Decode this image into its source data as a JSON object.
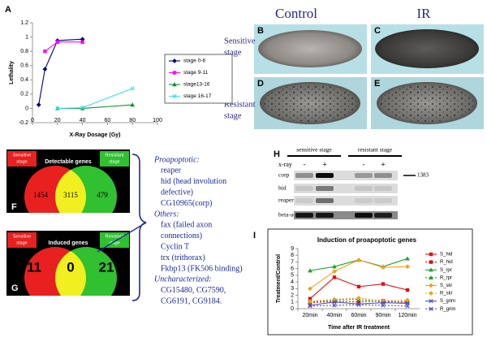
{
  "panel_labels": [
    "A",
    "B",
    "C",
    "D",
    "E",
    "F",
    "G",
    "H",
    "I"
  ],
  "chart_data": [
    {
      "type": "line",
      "x_label": "X-Ray Dosage (Gy)",
      "y_label": "Lethality",
      "xlim": [
        0,
        100
      ],
      "xticks": [
        0,
        20,
        40,
        60,
        80,
        100
      ],
      "ylim": [
        -0.2,
        1.2
      ],
      "yticks": [
        -0.2,
        0,
        0.2,
        0.4,
        0.6,
        0.8,
        1,
        1.2
      ],
      "grid": false,
      "legend": "right",
      "series": [
        {
          "name": "stage 0-6",
          "color": "#000080",
          "marker": "diamond",
          "x": [
            5,
            10,
            20,
            40
          ],
          "values": [
            0.05,
            0.55,
            0.95,
            0.97
          ]
        },
        {
          "name": "stage 9-11",
          "color": "#ff00ff",
          "marker": "square",
          "x": [
            10,
            20,
            40
          ],
          "values": [
            0.8,
            0.93,
            0.93
          ]
        },
        {
          "name": "stage13-16",
          "color": "#109030",
          "marker": "triangle",
          "x": [
            20,
            40,
            80
          ],
          "values": [
            0,
            0,
            0.05
          ]
        },
        {
          "name": "stage 16-17",
          "color": "#40e0f0",
          "marker": "x",
          "x": [
            20,
            40,
            80
          ],
          "values": [
            0,
            0.01,
            0.28
          ]
        }
      ]
    },
    {
      "type": "line",
      "title": "Induction of proapoptotic genes",
      "x_label": "Time after IR treatment",
      "y_label": "Treatment/Control",
      "categories": [
        "20min",
        "40min",
        "60min",
        "90min",
        "120min"
      ],
      "ylim": [
        0,
        9
      ],
      "yticks": [
        0,
        1,
        2,
        3,
        4,
        5,
        6,
        7,
        8,
        9
      ],
      "grid": false,
      "legend": "right",
      "series": [
        {
          "name": "S_hid",
          "color": "#e01010",
          "marker": "square",
          "dash": false,
          "values": [
            1.5,
            4.7,
            3.3,
            3.7,
            2.8
          ]
        },
        {
          "name": "R_hid",
          "color": "#e01010",
          "marker": "square",
          "dash": true,
          "values": [
            0.9,
            1.1,
            1.0,
            1.2,
            0.9
          ]
        },
        {
          "name": "S_rpr",
          "color": "#20a030",
          "marker": "triangle",
          "dash": false,
          "values": [
            5.7,
            6.3,
            7.3,
            6.3,
            7.5
          ]
        },
        {
          "name": "R_rpr",
          "color": "#20a030",
          "marker": "triangle",
          "dash": true,
          "values": [
            1.0,
            1.3,
            1.4,
            1.0,
            1.1
          ]
        },
        {
          "name": "S_skl",
          "color": "#f0a020",
          "marker": "diamond",
          "dash": false,
          "values": [
            3.0,
            5.6,
            7.3,
            6.2,
            6.3
          ]
        },
        {
          "name": "R_skl",
          "color": "#f0a020",
          "marker": "diamond",
          "dash": true,
          "values": [
            1.1,
            1.4,
            1.6,
            1.2,
            1.3
          ]
        },
        {
          "name": "S_grim",
          "color": "#5050c0",
          "marker": "x",
          "dash": false,
          "values": [
            0.5,
            1.0,
            0.7,
            0.9,
            0.8
          ]
        },
        {
          "name": "R_grim",
          "color": "#5050c0",
          "marker": "x",
          "dash": true,
          "values": [
            0.4,
            0.5,
            0.6,
            0.5,
            0.4
          ]
        }
      ]
    }
  ],
  "images": {
    "columns": [
      "Control",
      "IR"
    ],
    "rows": [
      [
        "Sensitive",
        "stage"
      ],
      [
        "Resistant",
        "stage"
      ]
    ]
  },
  "venn": [
    {
      "left": [
        "Sensitive",
        "stage"
      ],
      "title": "Detectable genes",
      "right": [
        "Resistant",
        "stage"
      ],
      "counts": [
        1454,
        3115,
        479
      ]
    },
    {
      "left": [
        "Sensitive",
        "stage"
      ],
      "title": "Induced genes",
      "right": [
        "Resistant",
        "stage"
      ],
      "counts": [
        11,
        0,
        21
      ]
    }
  ],
  "gene_list": [
    {
      "heading": "Proapoptotic:",
      "items": [
        "reaper",
        "hid (head involution",
        "defective)",
        "CG10965(corp)"
      ]
    },
    {
      "heading": "Others:",
      "items": [
        "fax (failed axon",
        "connections)",
        "Cyclin T",
        "trx (trithorax)",
        "Fkbp13 (FK506 binding)"
      ]
    },
    {
      "heading": "Uncharacterized:",
      "items": [
        "CG15480, CG7590,",
        "CG6191, CG9184."
      ]
    }
  ],
  "gel": {
    "columns": [
      "sensitive stage",
      "resistant stage"
    ],
    "xray_label": "x-ray",
    "lanes": [
      "-",
      "+",
      "-",
      "+"
    ],
    "rows": [
      "corp",
      "hid",
      "reaper",
      "beta-actin"
    ],
    "marker": 1383
  }
}
